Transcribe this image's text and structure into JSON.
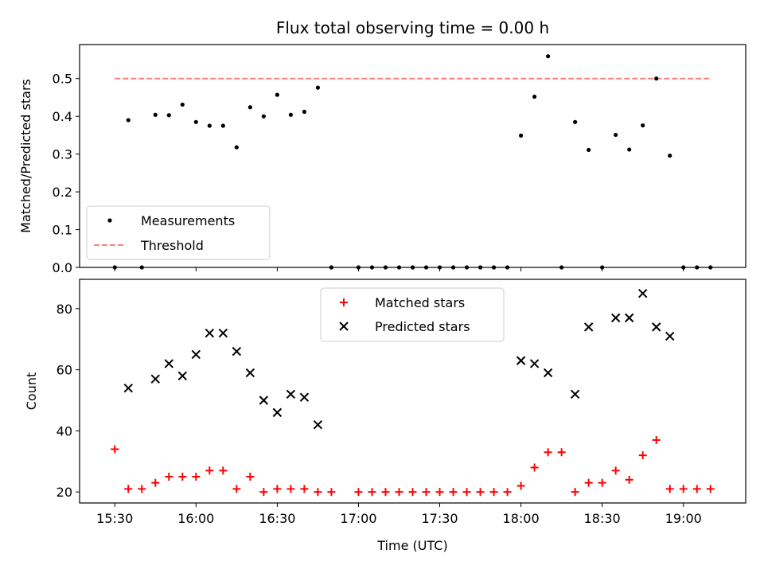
{
  "chart_data": [
    {
      "type": "scatter",
      "title": "Flux total observing time = 0.00 h",
      "xlabel": "",
      "ylabel": "Matched/Predicted stars",
      "ylim": [
        0,
        0.59
      ],
      "yticks": [
        "0.0",
        "0.1",
        "0.2",
        "0.3",
        "0.4",
        "0.5"
      ],
      "legend_position": "lower-left",
      "series": [
        {
          "name": "Measurements",
          "kind": "points",
          "color": "#000000",
          "points": [
            [
              "15:30",
              0.0
            ],
            [
              "15:35",
              0.39
            ],
            [
              "15:40",
              0.0
            ],
            [
              "15:45",
              0.404
            ],
            [
              "15:50",
              0.403
            ],
            [
              "15:55",
              0.431
            ],
            [
              "16:00",
              0.385
            ],
            [
              "16:05",
              0.375
            ],
            [
              "16:10",
              0.375
            ],
            [
              "16:15",
              0.318
            ],
            [
              "16:20",
              0.424
            ],
            [
              "16:25",
              0.4
            ],
            [
              "16:30",
              0.457
            ],
            [
              "16:35",
              0.404
            ],
            [
              "16:40",
              0.412
            ],
            [
              "16:45",
              0.476
            ],
            [
              "16:50",
              0.0
            ],
            [
              "17:00",
              0.0
            ],
            [
              "17:05",
              0.0
            ],
            [
              "17:10",
              0.0
            ],
            [
              "17:15",
              0.0
            ],
            [
              "17:20",
              0.0
            ],
            [
              "17:25",
              0.0
            ],
            [
              "17:30",
              0.0
            ],
            [
              "17:35",
              0.0
            ],
            [
              "17:40",
              0.0
            ],
            [
              "17:45",
              0.0
            ],
            [
              "17:50",
              0.0
            ],
            [
              "17:55",
              0.0
            ],
            [
              "18:00",
              0.349
            ],
            [
              "18:05",
              0.452
            ],
            [
              "18:10",
              0.559
            ],
            [
              "18:15",
              0.0
            ],
            [
              "18:20",
              0.385
            ],
            [
              "18:25",
              0.311
            ],
            [
              "18:30",
              0.0
            ],
            [
              "18:35",
              0.351
            ],
            [
              "18:40",
              0.312
            ],
            [
              "18:45",
              0.376
            ],
            [
              "18:50",
              0.5
            ],
            [
              "18:55",
              0.296
            ],
            [
              "19:00",
              0.0
            ],
            [
              "19:05",
              0.0
            ],
            [
              "19:10",
              0.0
            ]
          ]
        },
        {
          "name": "Threshold",
          "kind": "dashed-line",
          "color": "#ff7f7f",
          "points": [
            [
              "15:30",
              0.5
            ],
            [
              "19:10",
              0.5
            ]
          ]
        }
      ]
    },
    {
      "type": "scatter",
      "title": "",
      "xlabel": "Time (UTC)",
      "ylabel": "Count",
      "ylim": [
        16.4,
        89.6
      ],
      "yticks": [
        "20",
        "40",
        "60",
        "80"
      ],
      "xticks": [
        "15:30",
        "16:00",
        "16:30",
        "17:00",
        "17:30",
        "18:00",
        "18:30",
        "19:00"
      ],
      "legend_position": "upper-center",
      "series": [
        {
          "name": "Matched stars",
          "marker": "plus",
          "color": "#ff0000",
          "points": [
            [
              "15:30",
              34
            ],
            [
              "15:35",
              21
            ],
            [
              "15:40",
              21
            ],
            [
              "15:45",
              23
            ],
            [
              "15:50",
              25
            ],
            [
              "15:55",
              25
            ],
            [
              "16:00",
              25
            ],
            [
              "16:05",
              27
            ],
            [
              "16:10",
              27
            ],
            [
              "16:15",
              21
            ],
            [
              "16:20",
              25
            ],
            [
              "16:25",
              20
            ],
            [
              "16:30",
              21
            ],
            [
              "16:35",
              21
            ],
            [
              "16:40",
              21
            ],
            [
              "16:45",
              20
            ],
            [
              "16:50",
              20
            ],
            [
              "17:00",
              20
            ],
            [
              "17:05",
              20
            ],
            [
              "17:10",
              20
            ],
            [
              "17:15",
              20
            ],
            [
              "17:20",
              20
            ],
            [
              "17:25",
              20
            ],
            [
              "17:30",
              20
            ],
            [
              "17:35",
              20
            ],
            [
              "17:40",
              20
            ],
            [
              "17:45",
              20
            ],
            [
              "17:50",
              20
            ],
            [
              "17:55",
              20
            ],
            [
              "18:00",
              22
            ],
            [
              "18:05",
              28
            ],
            [
              "18:10",
              33
            ],
            [
              "18:15",
              33
            ],
            [
              "18:20",
              20
            ],
            [
              "18:25",
              23
            ],
            [
              "18:30",
              23
            ],
            [
              "18:35",
              27
            ],
            [
              "18:40",
              24
            ],
            [
              "18:45",
              32
            ],
            [
              "18:50",
              37
            ],
            [
              "18:55",
              21
            ],
            [
              "19:00",
              21
            ],
            [
              "19:05",
              21
            ],
            [
              "19:10",
              21
            ]
          ]
        },
        {
          "name": "Predicted stars",
          "marker": "x",
          "color": "#000000",
          "points": [
            [
              "15:35",
              54
            ],
            [
              "15:45",
              57
            ],
            [
              "15:50",
              62
            ],
            [
              "15:55",
              58
            ],
            [
              "16:00",
              65
            ],
            [
              "16:05",
              72
            ],
            [
              "16:10",
              72
            ],
            [
              "16:15",
              66
            ],
            [
              "16:20",
              59
            ],
            [
              "16:25",
              50
            ],
            [
              "16:30",
              46
            ],
            [
              "16:35",
              52
            ],
            [
              "16:40",
              51
            ],
            [
              "16:45",
              42
            ],
            [
              "18:00",
              63
            ],
            [
              "18:05",
              62
            ],
            [
              "18:10",
              59
            ],
            [
              "18:20",
              52
            ],
            [
              "18:25",
              74
            ],
            [
              "18:35",
              77
            ],
            [
              "18:40",
              77
            ],
            [
              "18:45",
              85
            ],
            [
              "18:50",
              74
            ],
            [
              "18:55",
              71
            ]
          ]
        }
      ]
    }
  ]
}
